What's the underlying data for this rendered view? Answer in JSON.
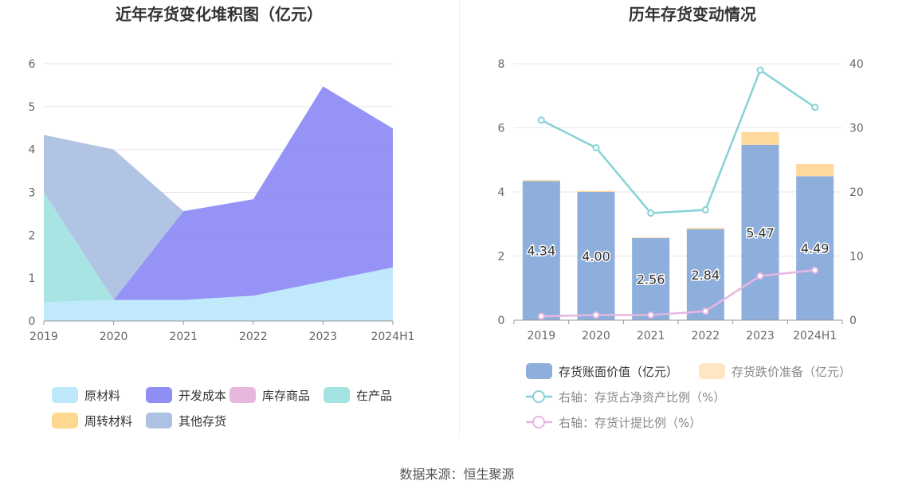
{
  "chart_data": [
    {
      "type": "area",
      "title": "近年存货变化堆积图（亿元）",
      "x": [
        "2019",
        "2020",
        "2021",
        "2022",
        "2023",
        "2024H1"
      ],
      "ylim": [
        0,
        6
      ],
      "yticks": [
        0,
        1,
        2,
        3,
        4,
        5,
        6
      ],
      "stacked": true,
      "grid": true,
      "legend_position": "bottom",
      "series": [
        {
          "name": "原材料",
          "color": "#bde8fb",
          "values": [
            0.44,
            0.49,
            0.49,
            0.59,
            0.92,
            1.25
          ]
        },
        {
          "name": "开发成本",
          "color": "#8f8ef5",
          "values": [
            0,
            0,
            2.07,
            2.25,
            4.55,
            3.24
          ]
        },
        {
          "name": "库存商品",
          "color": "#e8b7dc",
          "values": [
            0,
            0,
            0,
            0,
            0,
            0
          ]
        },
        {
          "name": "在产品",
          "color": "#a3e3e2",
          "values": [
            2.57,
            0,
            0,
            0,
            0,
            0
          ]
        },
        {
          "name": "周转材料",
          "color": "#ffd890",
          "values": [
            0,
            0,
            0,
            0,
            0,
            0
          ]
        },
        {
          "name": "其他存货",
          "color": "#adc1e2",
          "values": [
            1.33,
            3.51,
            0,
            0,
            0,
            0
          ]
        }
      ]
    },
    {
      "type": "bar",
      "title": "历年存货变动情况",
      "categories": [
        "2019",
        "2020",
        "2021",
        "2022",
        "2023",
        "2024H1"
      ],
      "ylim": [
        0,
        8
      ],
      "yticks": [
        0,
        2,
        4,
        6,
        8
      ],
      "y2lim": [
        0,
        40
      ],
      "y2ticks": [
        0,
        10,
        20,
        30,
        40
      ],
      "grid": true,
      "legend_position": "bottom",
      "series": [
        {
          "name": "存货账面价值（亿元）",
          "type": "bar",
          "color": "#8eaedb",
          "values": [
            4.34,
            4.0,
            2.56,
            2.84,
            5.47,
            4.49
          ],
          "labels": [
            "4.34",
            "4.00",
            "2.56",
            "2.84",
            "5.47",
            "4.49"
          ]
        },
        {
          "name": "存货跌价准备（亿元）",
          "type": "bar",
          "color": "#ffd89b",
          "values": [
            0.03,
            0.03,
            0.02,
            0.04,
            0.4,
            0.38
          ]
        },
        {
          "name": "右轴：存货占净资产比例（%）",
          "type": "line",
          "axis": "right",
          "color": "#86d2d6",
          "values": [
            31.2,
            26.9,
            16.7,
            17.2,
            39.0,
            33.2
          ]
        },
        {
          "name": "右轴：存货计提比例（%）",
          "type": "line",
          "axis": "right",
          "color": "#e7b6e1",
          "values": [
            0.6,
            0.8,
            0.8,
            1.4,
            6.9,
            7.8
          ]
        }
      ]
    }
  ],
  "source": "数据来源：恒生聚源"
}
